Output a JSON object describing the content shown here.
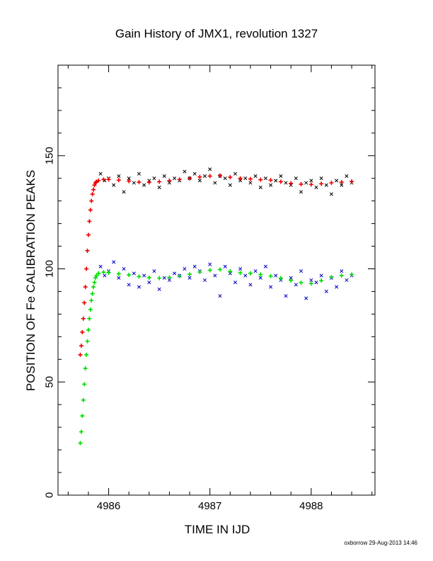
{
  "chart_data": {
    "type": "scatter",
    "title": "Gain History of JMX1, revolution 1327",
    "xlabel": "TIME IN IJD",
    "ylabel": "POSITION OF Fe CALIBRATION PEAKS",
    "xlim": [
      4985.5,
      4988.63
    ],
    "ylim": [
      0,
      190
    ],
    "xticks": [
      4986,
      4987,
      4988
    ],
    "yticks": [
      0,
      50,
      100,
      150
    ],
    "grid": false,
    "series": [
      {
        "marker": "x",
        "color": "#000000",
        "x": [
          4985.92,
          4985.96,
          4986.0,
          4986.05,
          4986.1,
          4986.15,
          4986.2,
          4986.25,
          4986.3,
          4986.35,
          4986.4,
          4986.45,
          4986.5,
          4986.55,
          4986.6,
          4986.65,
          4986.7,
          4986.75,
          4986.8,
          4986.85,
          4986.9,
          4986.95,
          4987.0,
          4987.05,
          4987.1,
          4987.15,
          4987.2,
          4987.25,
          4987.3,
          4987.35,
          4987.4,
          4987.45,
          4987.5,
          4987.55,
          4987.6,
          4987.65,
          4987.7,
          4987.75,
          4987.8,
          4987.85,
          4987.9,
          4987.95,
          4988.0,
          4988.05,
          4988.1,
          4988.15,
          4988.2,
          4988.25,
          4988.3,
          4988.35,
          4988.4
        ],
        "y": [
          142,
          139,
          140,
          137,
          141,
          134,
          140,
          138,
          142,
          137,
          139,
          140,
          136,
          141,
          138,
          140,
          139,
          143,
          140,
          142,
          139,
          141,
          144,
          138,
          141,
          140,
          137,
          142,
          139,
          140,
          138,
          141,
          136,
          140,
          137,
          139,
          141,
          138,
          137,
          140,
          134,
          138,
          139,
          136,
          140,
          137,
          133,
          139,
          137,
          141,
          138
        ]
      },
      {
        "marker": "+",
        "color": "#ee0000",
        "x": [
          4985.72,
          4985.73,
          4985.74,
          4985.75,
          4985.76,
          4985.77,
          4985.78,
          4985.79,
          4985.8,
          4985.81,
          4985.82,
          4985.83,
          4985.84,
          4985.85,
          4985.86,
          4985.87,
          4985.88,
          4985.9,
          4985.95,
          4986.0,
          4986.1,
          4986.2,
          4986.3,
          4986.4,
          4986.5,
          4986.6,
          4986.7,
          4986.8,
          4986.9,
          4987.0,
          4987.1,
          4987.2,
          4987.3,
          4987.4,
          4987.5,
          4987.6,
          4987.7,
          4987.8,
          4987.9,
          4988.0,
          4988.1,
          4988.2,
          4988.3,
          4988.4
        ],
        "y": [
          62,
          66,
          72,
          78,
          85,
          92,
          100,
          108,
          115,
          121,
          126,
          130,
          133,
          135,
          137,
          138,
          138.5,
          139,
          139.5,
          139.5,
          139.2,
          138.8,
          138.3,
          138.2,
          138.5,
          139,
          139.5,
          140,
          140.6,
          141,
          141.2,
          140.5,
          140,
          139.7,
          139.4,
          139.2,
          138.5,
          137.8,
          137.4,
          137.3,
          137.6,
          138,
          138.3,
          138.6
        ]
      },
      {
        "marker": "x",
        "color": "#0000cc",
        "x": [
          4985.92,
          4985.96,
          4986.0,
          4986.05,
          4986.1,
          4986.15,
          4986.2,
          4986.25,
          4986.3,
          4986.35,
          4986.4,
          4986.45,
          4986.5,
          4986.55,
          4986.6,
          4986.65,
          4986.7,
          4986.75,
          4986.8,
          4986.85,
          4986.9,
          4986.95,
          4987.0,
          4987.05,
          4987.1,
          4987.15,
          4987.2,
          4987.25,
          4987.3,
          4987.35,
          4987.4,
          4987.45,
          4987.5,
          4987.55,
          4987.6,
          4987.65,
          4987.7,
          4987.75,
          4987.8,
          4987.85,
          4987.9,
          4987.95,
          4988.0,
          4988.05,
          4988.1,
          4988.15,
          4988.2,
          4988.25,
          4988.3,
          4988.35,
          4988.4
        ],
        "y": [
          101,
          97,
          99,
          103,
          96,
          100,
          93,
          98,
          92,
          97,
          94,
          99,
          91,
          96,
          95,
          98,
          97,
          100,
          96,
          101,
          99,
          95,
          102,
          97,
          88,
          101,
          98,
          94,
          100,
          97,
          93,
          99,
          96,
          101,
          92,
          97,
          95,
          88,
          96,
          93,
          99,
          87,
          95,
          94,
          97,
          90,
          96,
          92,
          99,
          95,
          97
        ]
      },
      {
        "marker": "+",
        "color": "#00dd00",
        "x": [
          4985.72,
          4985.73,
          4985.74,
          4985.75,
          4985.76,
          4985.77,
          4985.78,
          4985.79,
          4985.8,
          4985.81,
          4985.82,
          4985.83,
          4985.84,
          4985.85,
          4985.86,
          4985.87,
          4985.88,
          4985.9,
          4985.95,
          4986.0,
          4986.1,
          4986.2,
          4986.3,
          4986.4,
          4986.5,
          4986.6,
          4986.7,
          4986.8,
          4986.9,
          4987.0,
          4987.1,
          4987.2,
          4987.3,
          4987.4,
          4987.5,
          4987.6,
          4987.7,
          4987.8,
          4987.9,
          4988.0,
          4988.1,
          4988.2,
          4988.3,
          4988.4
        ],
        "y": [
          23,
          28,
          35,
          42,
          49,
          56,
          62,
          68,
          73,
          78,
          82,
          86,
          89,
          92,
          94,
          96,
          97,
          98,
          98.5,
          98.3,
          97.8,
          97.3,
          96.6,
          96.1,
          95.9,
          96.2,
          96.8,
          97.6,
          98.6,
          99.4,
          99.7,
          98.9,
          98.2,
          98,
          97.5,
          96.8,
          95.9,
          94.9,
          93.9,
          93.5,
          94.8,
          96.3,
          97,
          97.5
        ]
      }
    ],
    "footer": "oxborrow 29-Aug-2013 14:46"
  }
}
